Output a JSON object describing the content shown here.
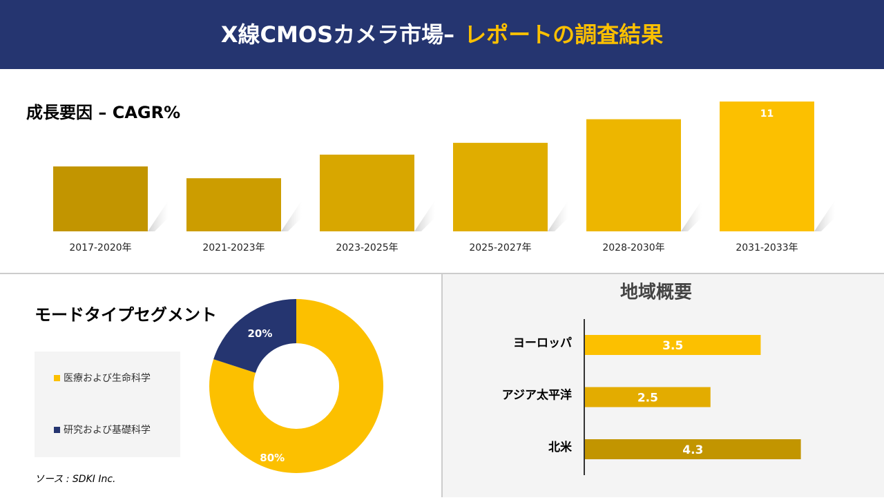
{
  "header": {
    "title": "X線CMOSカメラ市場–",
    "highlight": "レポートの調査結果"
  },
  "source": "ソース : SDKI Inc.",
  "chart_data": [
    {
      "type": "bar",
      "title": "成長要因 – CAGR%",
      "categories": [
        "2017-2020年",
        "2021-2023年",
        "2023-2025年",
        "2025-2027年",
        "2028-2030年",
        "2031-2033年"
      ],
      "values": [
        5.5,
        4.5,
        6.5,
        7.5,
        9.5,
        11
      ],
      "value_labels": [
        null,
        null,
        null,
        null,
        null,
        "11"
      ],
      "colors": [
        "#c29500",
        "#cc9d00",
        "#d8a700",
        "#e0ad00",
        "#edb600",
        "#fcc000"
      ]
    },
    {
      "type": "donut",
      "title": "モードタイプセグメント",
      "categories": [
        "医療および生命科学",
        "研究および基礎科学"
      ],
      "values": [
        80,
        20
      ],
      "value_labels": [
        "80%",
        "20%"
      ],
      "colors": [
        "#fcc000",
        "#253570"
      ],
      "legend": "left"
    },
    {
      "type": "bar",
      "orientation": "horizontal",
      "title": "地域概要",
      "categories": [
        "ヨーロッパ",
        "アジア太平洋",
        "北米"
      ],
      "values": [
        3.5,
        2.5,
        4.3
      ],
      "colors": [
        "#fcc000",
        "#e3ac00",
        "#c29500"
      ]
    }
  ]
}
